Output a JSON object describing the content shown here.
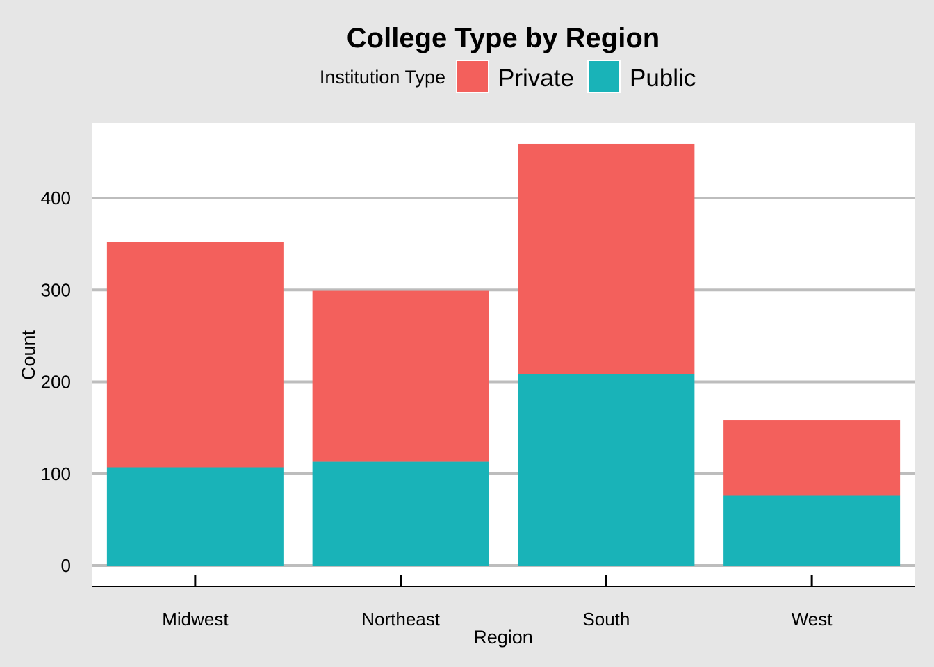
{
  "chart_data": {
    "type": "bar",
    "stacked": true,
    "title": "College Type by Region",
    "xlabel": "Region",
    "ylabel": "Count",
    "categories": [
      "Midwest",
      "Northeast",
      "South",
      "West"
    ],
    "series": [
      {
        "name": "Public",
        "color": "#19b3b8",
        "values": [
          107,
          113,
          208,
          76
        ]
      },
      {
        "name": "Private",
        "color": "#f3605c",
        "values": [
          245,
          186,
          251,
          82
        ]
      }
    ],
    "stack_order_bottom_to_top": [
      "Public",
      "Private"
    ],
    "legend": {
      "title": "Institution Type",
      "placement": "top",
      "entries": [
        "Private",
        "Public"
      ]
    },
    "yticks": [
      0,
      100,
      200,
      300,
      400
    ],
    "ylim": [
      0,
      478
    ],
    "grid": "horizontal-major",
    "colors": {
      "background": "#e6e6e6",
      "panel": "#ffffff",
      "grid": "#bdbdbd",
      "axis": "#000000"
    }
  }
}
